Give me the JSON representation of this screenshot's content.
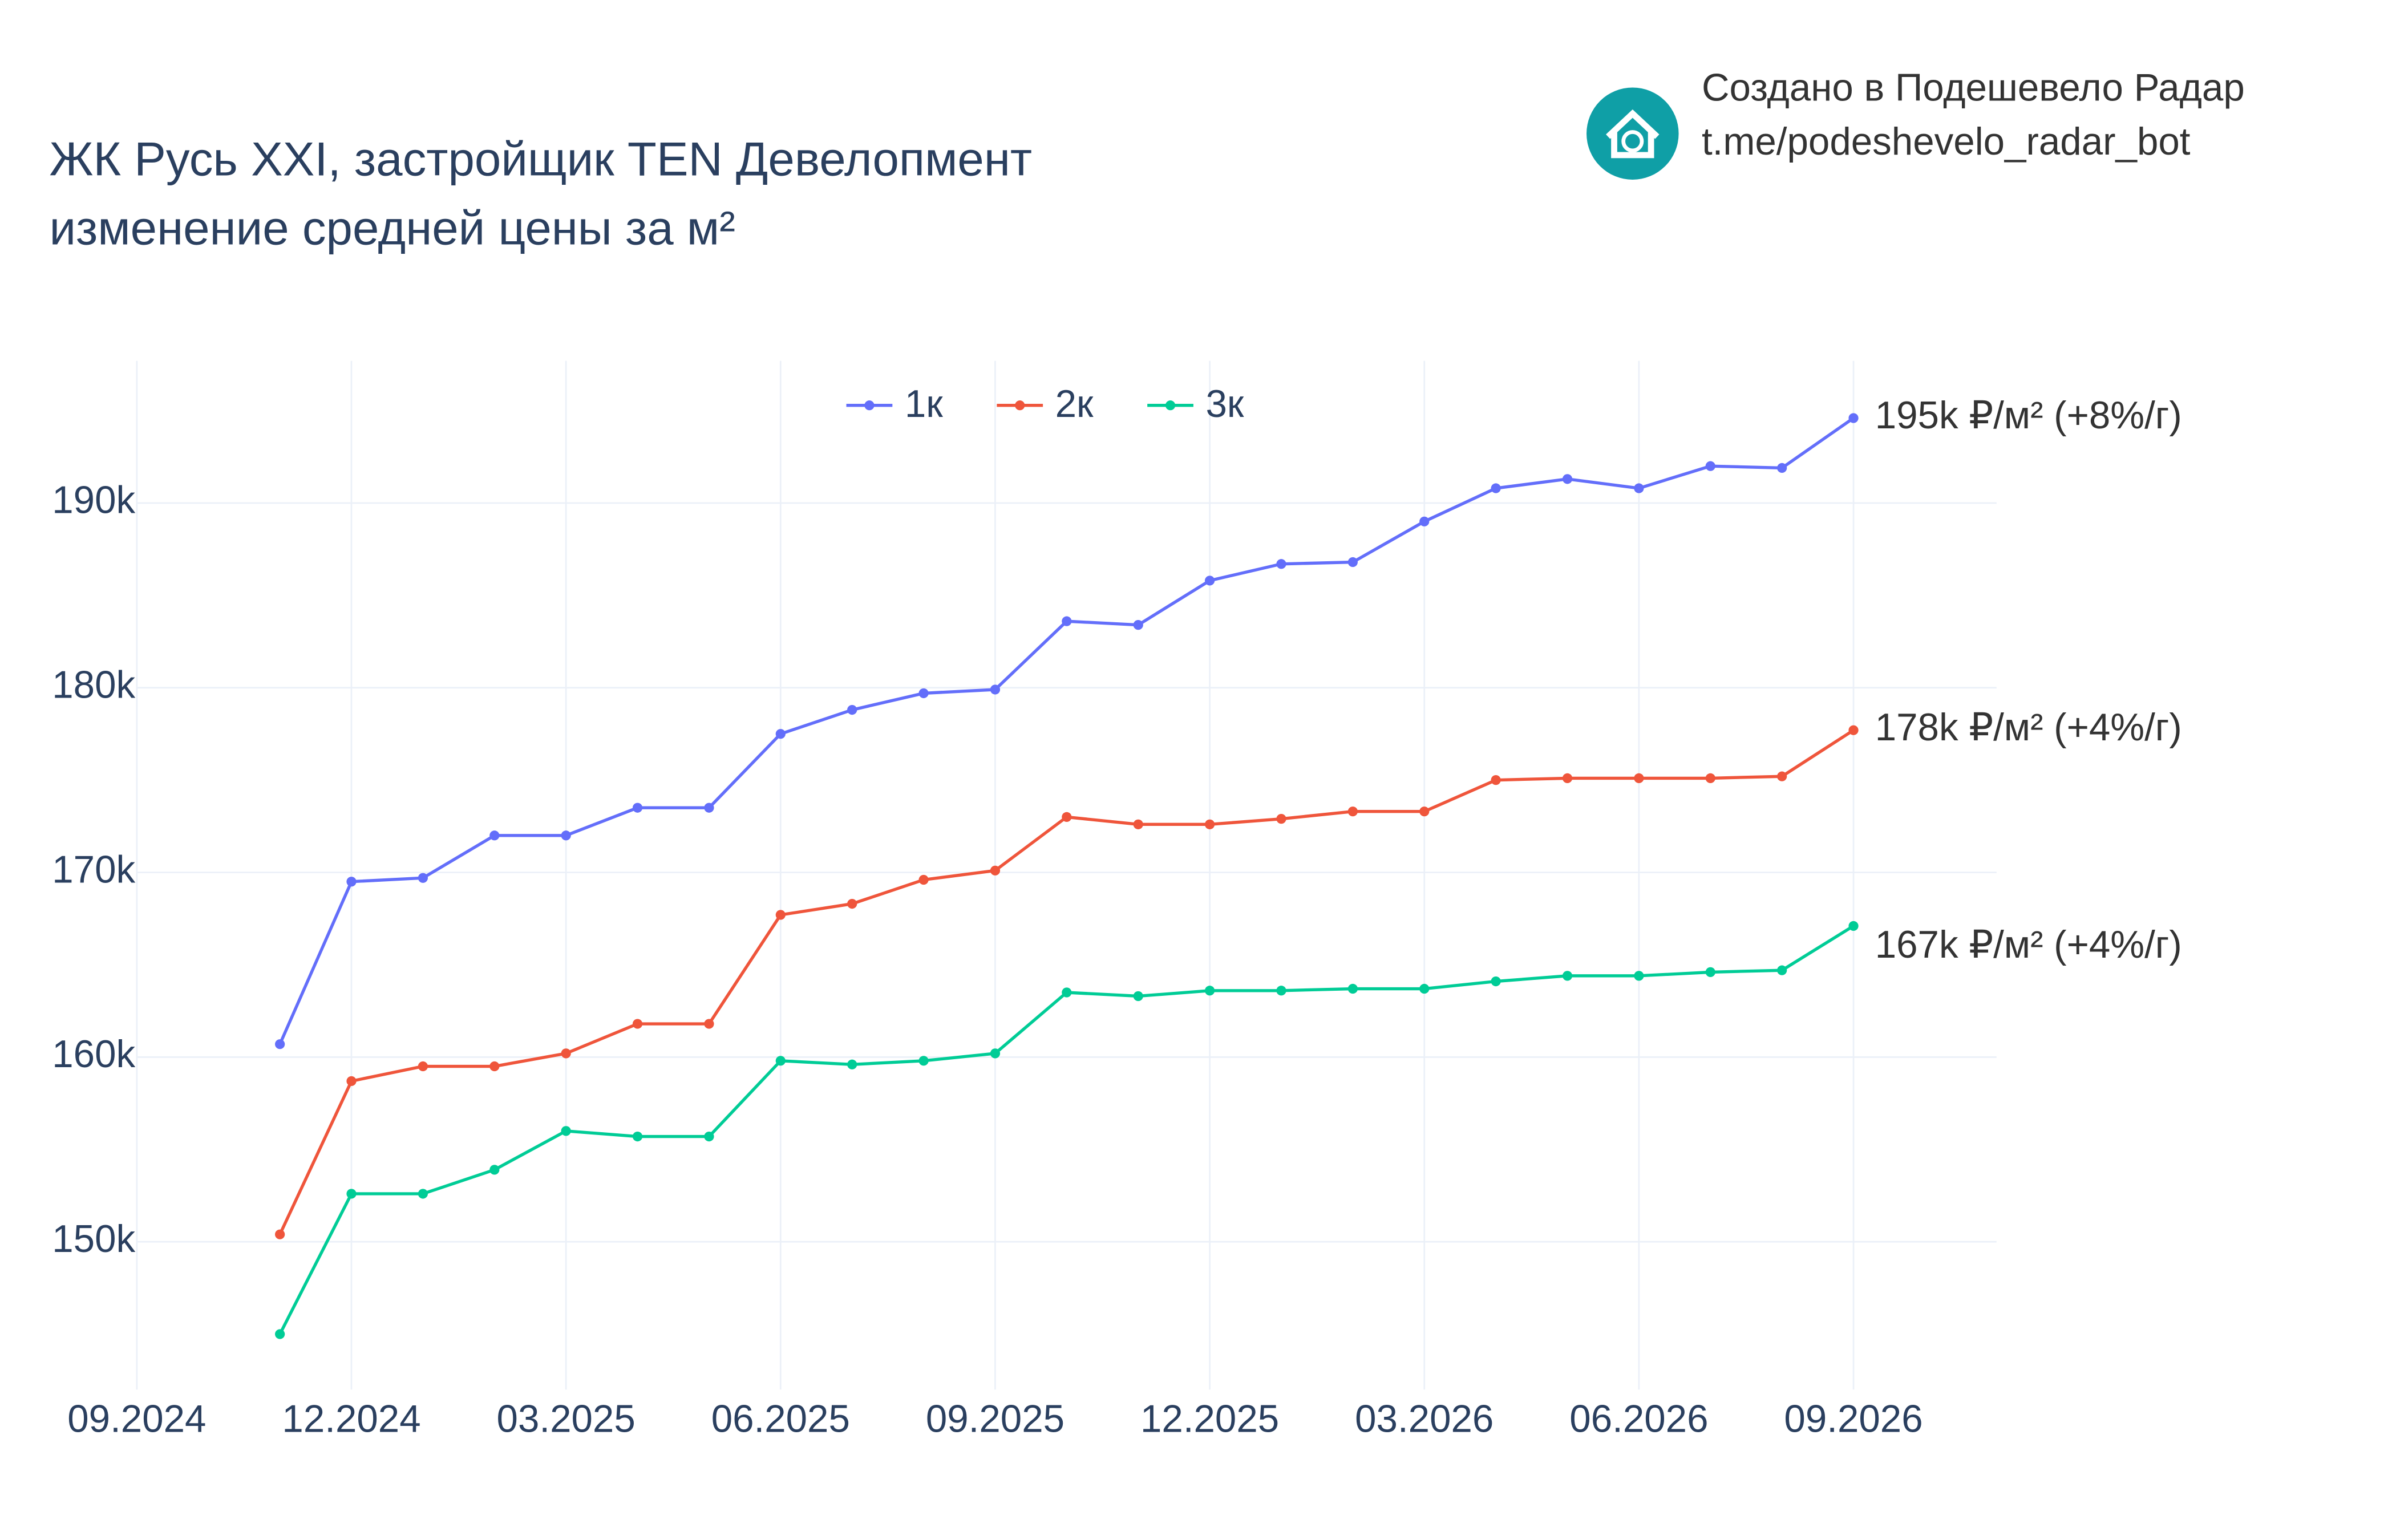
{
  "chart_data": {
    "type": "line",
    "title": "ЖК Русь XXI, застройщик TEN Девелопмент",
    "subtitle": "изменение средней цены за м²",
    "watermark": [
      "Создано в Подешевело Радар",
      "t.me/podeshevelo_radar_bot"
    ],
    "x": [
      "11.2024",
      "12.2024",
      "01.2025",
      "02.2025",
      "03.2025",
      "04.2025",
      "05.2025",
      "06.2025",
      "07.2025",
      "08.2025",
      "09.2025",
      "10.2025",
      "11.2025",
      "12.2025",
      "01.2026",
      "02.2026",
      "03.2026",
      "04.2026",
      "05.2026",
      "06.2026",
      "07.2026",
      "08.2026",
      "09.2026"
    ],
    "series": [
      {
        "name": "1к",
        "color": "#636efa",
        "end_label": "195k ₽/м² (+8%/г)",
        "values": [
          160700,
          169500,
          169700,
          172000,
          172000,
          173500,
          173500,
          177500,
          178800,
          179700,
          179900,
          183600,
          183400,
          185800,
          186700,
          186800,
          189000,
          190800,
          191300,
          190800,
          192000,
          191900,
          194600
        ]
      },
      {
        "name": "2к",
        "color": "#ef553b",
        "end_label": "178k ₽/м² (+4%/г)",
        "values": [
          150400,
          158700,
          159500,
          159500,
          160200,
          161800,
          161800,
          167700,
          168300,
          169600,
          170100,
          173000,
          172600,
          172600,
          172900,
          173300,
          173300,
          175000,
          175100,
          175100,
          175100,
          175200,
          177700
        ]
      },
      {
        "name": "3к",
        "color": "#00cc96",
        "end_label": "167k ₽/м² (+4%/г)",
        "values": [
          145000,
          152600,
          152600,
          153900,
          156000,
          155700,
          155700,
          159800,
          159600,
          159800,
          160200,
          163500,
          163300,
          163600,
          163600,
          163700,
          163700,
          164100,
          164400,
          164400,
          164600,
          164700,
          167100
        ]
      }
    ],
    "xlim": [
      "09.2024",
      "11.2026"
    ],
    "xticks": [
      "09.2024",
      "12.2024",
      "03.2025",
      "06.2025",
      "09.2025",
      "12.2025",
      "03.2026",
      "06.2026",
      "09.2026"
    ],
    "ylim": [
      142000,
      197700
    ],
    "yticks": [
      {
        "value": 150000,
        "label": "150k"
      },
      {
        "value": 160000,
        "label": "160k"
      },
      {
        "value": 170000,
        "label": "170k"
      },
      {
        "value": 180000,
        "label": "180k"
      },
      {
        "value": 190000,
        "label": "190k"
      }
    ],
    "grid": true,
    "legend": "top"
  }
}
